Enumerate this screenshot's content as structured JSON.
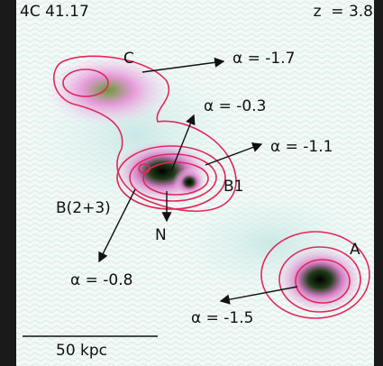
{
  "title": "4C 41.17",
  "redshift": "z  = 3.8",
  "components": [
    "C",
    "B1",
    "B(2+3)",
    "N",
    "A"
  ],
  "spectral_indices": [
    "α = -1.7",
    "α = -0.3",
    "α = -1.1",
    "α = -0.8",
    "α = -1.5"
  ],
  "scale_bar": "50 kpc"
}
